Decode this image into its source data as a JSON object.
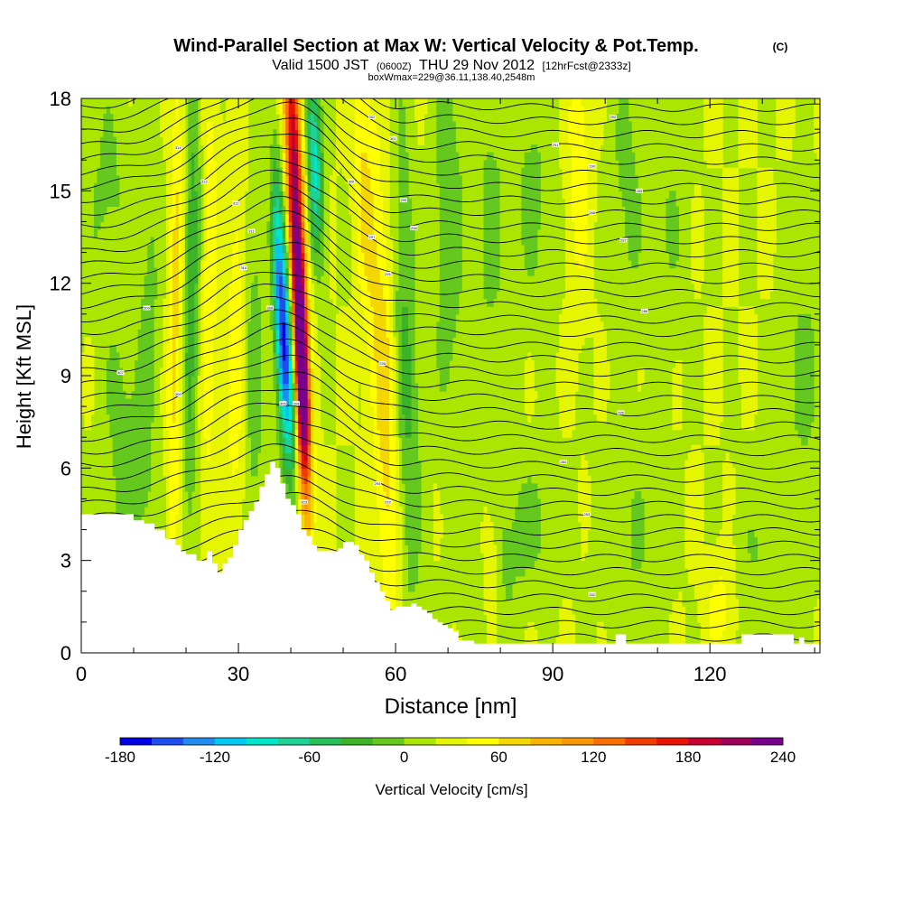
{
  "chart_data": {
    "type": "heatmap",
    "title": "Wind-Parallel Section at Max W: Vertical Velocity & Pot.Temp.",
    "title_mark": "(C)",
    "subtitle": {
      "valid": "Valid 1500 JST",
      "utc": "(0600Z)",
      "date": "THU 29 Nov 2012",
      "forecast": "[12hrFcst@2333z]"
    },
    "box_info": "boxWmax=229@36.11,138.40,2548m",
    "xlabel": "Distance [nm]",
    "ylabel": "Height [Kft MSL]",
    "xlim": [
      0,
      141
    ],
    "ylim": [
      0,
      18
    ],
    "x_ticks": [
      0,
      30,
      60,
      90,
      120
    ],
    "x_tick_labels": [
      "0",
      "30",
      "60",
      "90",
      "120"
    ],
    "y_ticks": [
      0,
      3,
      6,
      9,
      12,
      15,
      18
    ],
    "y_tick_labels": [
      "0",
      "3",
      "6",
      "9",
      "12",
      "15",
      "18"
    ],
    "colorbar": {
      "label": "Vertical Velocity [cm/s]",
      "min": -180,
      "max": 240,
      "step": 20,
      "tick_labels": [
        "-180",
        "-120",
        "-60",
        "0",
        "60",
        "120",
        "180",
        "240"
      ],
      "colors": [
        "#0000e6",
        "#1e4ef0",
        "#1e8cf0",
        "#00c8f0",
        "#00e6c8",
        "#1ed296",
        "#28be5a",
        "#3cb428",
        "#64c81e",
        "#aae600",
        "#e6f500",
        "#ffff00",
        "#f5d700",
        "#fab400",
        "#fa9600",
        "#fa6e00",
        "#f03c00",
        "#e61400",
        "#c80032",
        "#a0005a",
        "#78008c"
      ]
    },
    "background_w": 20,
    "terrain": {
      "x": [
        0,
        4,
        8,
        10,
        12,
        14,
        16,
        18,
        19,
        20,
        22,
        24,
        25,
        26,
        27,
        28,
        29,
        30,
        31,
        32,
        33,
        34,
        35,
        36,
        37,
        38,
        39,
        40,
        41,
        42,
        43,
        44,
        45,
        46,
        47,
        48,
        49,
        50,
        51,
        52,
        53,
        54,
        55,
        56,
        57,
        58,
        59,
        60,
        62,
        63,
        64,
        65,
        66,
        67,
        68,
        69,
        70,
        71,
        72,
        75,
        80,
        90,
        100,
        102,
        104,
        110,
        120,
        124,
        126,
        130,
        135,
        136,
        137,
        138,
        139,
        141
      ],
      "y": [
        4.5,
        4.5,
        4.5,
        4.3,
        4.2,
        4.0,
        3.7,
        3.5,
        3.3,
        3.2,
        3.0,
        3.3,
        2.9,
        2.6,
        2.9,
        3.1,
        3.5,
        4.0,
        4.3,
        4.6,
        4.9,
        5.4,
        5.8,
        6.2,
        6.0,
        5.5,
        5.0,
        4.8,
        4.5,
        4.0,
        3.8,
        3.5,
        3.3,
        3.3,
        3.3,
        3.3,
        3.4,
        3.6,
        3.6,
        3.5,
        3.2,
        3.0,
        2.6,
        2.3,
        2.0,
        1.7,
        1.4,
        1.5,
        1.5,
        1.6,
        1.5,
        1.4,
        1.3,
        1.1,
        1.0,
        0.9,
        0.8,
        0.7,
        0.4,
        0.3,
        0.3,
        0.3,
        0.3,
        0.6,
        0.3,
        0.3,
        0.3,
        0.3,
        0.6,
        0.6,
        0.6,
        0.3,
        0.5,
        0.3,
        0.3,
        0.3
      ]
    },
    "w_features": [
      {
        "x": 41,
        "y": 14,
        "sx": 1.1,
        "sy": 6.0,
        "tilt": -0.22,
        "w": 200
      },
      {
        "x": 39,
        "y": 9.8,
        "sx": 1.2,
        "sy": 2.8,
        "tilt": -0.22,
        "w": -170
      },
      {
        "x": 42,
        "y": 9,
        "sx": 0.9,
        "sy": 2.5,
        "tilt": -0.2,
        "w": 150
      },
      {
        "x": 44.5,
        "y": 16,
        "sx": 1.0,
        "sy": 2.2,
        "tilt": -0.2,
        "w": -110
      },
      {
        "x": 37.5,
        "y": 13,
        "sx": 0.8,
        "sy": 2.6,
        "tilt": -0.15,
        "w": -60
      },
      {
        "x": 58,
        "y": 8,
        "sx": 1.6,
        "sy": 5.5,
        "tilt": -0.18,
        "w": 55
      },
      {
        "x": 54,
        "y": 15,
        "sx": 1.3,
        "sy": 3.5,
        "tilt": -0.15,
        "w": 40
      },
      {
        "x": 62,
        "y": 9,
        "sx": 1.7,
        "sy": 6.0,
        "tilt": -0.12,
        "w": -45
      },
      {
        "x": 18,
        "y": 11,
        "sx": 1.0,
        "sy": 6.0,
        "tilt": 0.08,
        "w": 50
      },
      {
        "x": 21,
        "y": 12,
        "sx": 1.1,
        "sy": 5.5,
        "tilt": 0.08,
        "w": -55
      },
      {
        "x": 24.5,
        "y": 12,
        "sx": 1.1,
        "sy": 5.5,
        "tilt": 0.05,
        "w": 35
      },
      {
        "x": 29.5,
        "y": 10,
        "sx": 1.2,
        "sy": 5.0,
        "tilt": 0.05,
        "w": 35
      },
      {
        "x": 33,
        "y": 9,
        "sx": 1.3,
        "sy": 5.0,
        "tilt": 0,
        "w": -30
      },
      {
        "x": 13,
        "y": 12,
        "sx": 1.5,
        "sy": 4.0,
        "tilt": 0,
        "w": -25
      },
      {
        "x": 5,
        "y": 15,
        "sx": 3.0,
        "sy": 2.5,
        "tilt": 0,
        "w": -25
      },
      {
        "x": 8,
        "y": 8,
        "sx": 3.0,
        "sy": 2.2,
        "tilt": 0,
        "w": -25
      },
      {
        "x": 70,
        "y": 14,
        "sx": 2.0,
        "sy": 5.0,
        "tilt": 0,
        "w": -35
      },
      {
        "x": 78,
        "y": 14,
        "sx": 2.5,
        "sy": 4.0,
        "tilt": 0,
        "w": -25
      },
      {
        "x": 86,
        "y": 15,
        "sx": 2.5,
        "sy": 3.0,
        "tilt": 0,
        "w": -25
      },
      {
        "x": 95,
        "y": 16,
        "sx": 1.5,
        "sy": 3.0,
        "tilt": 0,
        "w": 35
      },
      {
        "x": 104,
        "y": 15,
        "sx": 2.5,
        "sy": 3.5,
        "tilt": 0,
        "w": -25
      },
      {
        "x": 112,
        "y": 14,
        "sx": 2.5,
        "sy": 3.0,
        "tilt": 0,
        "w": -20
      },
      {
        "x": 138,
        "y": 9,
        "sx": 3.0,
        "sy": 3.0,
        "tilt": 0,
        "w": -25
      },
      {
        "x": 85,
        "y": 4.2,
        "sx": 5.0,
        "sy": 1.5,
        "tilt": 0,
        "w": -25
      },
      {
        "x": 105,
        "y": 3.5,
        "sx": 4.0,
        "sy": 2.5,
        "tilt": 0,
        "w": -20
      },
      {
        "x": 78,
        "y": 2,
        "sx": 4.0,
        "sy": 1.5,
        "tilt": 0,
        "w": -20
      },
      {
        "x": 130,
        "y": 3,
        "sx": 4.0,
        "sy": 2.0,
        "tilt": 0,
        "w": -20
      },
      {
        "x": 78,
        "y": 2.8,
        "sx": 1.2,
        "sy": 1.5,
        "tilt": 0,
        "w": 40
      },
      {
        "x": 122,
        "y": 1.5,
        "sx": 2.0,
        "sy": 1.2,
        "tilt": 0,
        "w": 30
      },
      {
        "x": 10,
        "y": 5,
        "sx": 3.0,
        "sy": 1.2,
        "tilt": 0,
        "w": -25
      }
    ],
    "theta_contours": {
      "count": 42,
      "base_height": 0.5,
      "spacing": 0.43,
      "wave_center": 40,
      "wave_width": 14,
      "wave_amp": 2.6,
      "wave_trough": 55,
      "trough_amp": 1.1
    },
    "contour_labels": [
      {
        "x": 18.5,
        "y": 16.4,
        "text": "314"
      },
      {
        "x": 23.5,
        "y": 15.3,
        "text": "313"
      },
      {
        "x": 29.5,
        "y": 14.6,
        "text": "312"
      },
      {
        "x": 32.5,
        "y": 13.7,
        "text": "311"
      },
      {
        "x": 31.0,
        "y": 12.5,
        "text": "310"
      },
      {
        "x": 12.5,
        "y": 11.2,
        "text": "309"
      },
      {
        "x": 36.0,
        "y": 11.2,
        "text": "308"
      },
      {
        "x": 7.5,
        "y": 9.1,
        "text": "307"
      },
      {
        "x": 18.5,
        "y": 8.4,
        "text": "306"
      },
      {
        "x": 38.5,
        "y": 8.1,
        "text": "305"
      },
      {
        "x": 41.0,
        "y": 8.1,
        "text": "304"
      },
      {
        "x": 42.5,
        "y": 4.9,
        "text": "303"
      },
      {
        "x": 55.5,
        "y": 17.4,
        "text": "302"
      },
      {
        "x": 59.5,
        "y": 16.7,
        "text": "301"
      },
      {
        "x": 51.5,
        "y": 15.3,
        "text": "300"
      },
      {
        "x": 61.5,
        "y": 14.7,
        "text": "299"
      },
      {
        "x": 63.5,
        "y": 13.8,
        "text": "298"
      },
      {
        "x": 55.5,
        "y": 13.5,
        "text": "297"
      },
      {
        "x": 58.5,
        "y": 12.3,
        "text": "296"
      },
      {
        "x": 57.5,
        "y": 9.4,
        "text": "295"
      },
      {
        "x": 56.5,
        "y": 5.5,
        "text": "294"
      },
      {
        "x": 58.5,
        "y": 4.9,
        "text": "293"
      },
      {
        "x": 101.5,
        "y": 17.4,
        "text": "292"
      },
      {
        "x": 90.5,
        "y": 16.5,
        "text": "291"
      },
      {
        "x": 97.5,
        "y": 15.8,
        "text": "290"
      },
      {
        "x": 106.5,
        "y": 15.0,
        "text": "289"
      },
      {
        "x": 97.5,
        "y": 14.3,
        "text": "288"
      },
      {
        "x": 103.5,
        "y": 13.4,
        "text": "287"
      },
      {
        "x": 107.5,
        "y": 11.1,
        "text": "286"
      },
      {
        "x": 103.0,
        "y": 7.8,
        "text": "285"
      },
      {
        "x": 92.0,
        "y": 6.2,
        "text": "284"
      },
      {
        "x": 96.5,
        "y": 4.5,
        "text": "283"
      },
      {
        "x": 97.5,
        "y": 1.9,
        "text": "282"
      }
    ]
  }
}
